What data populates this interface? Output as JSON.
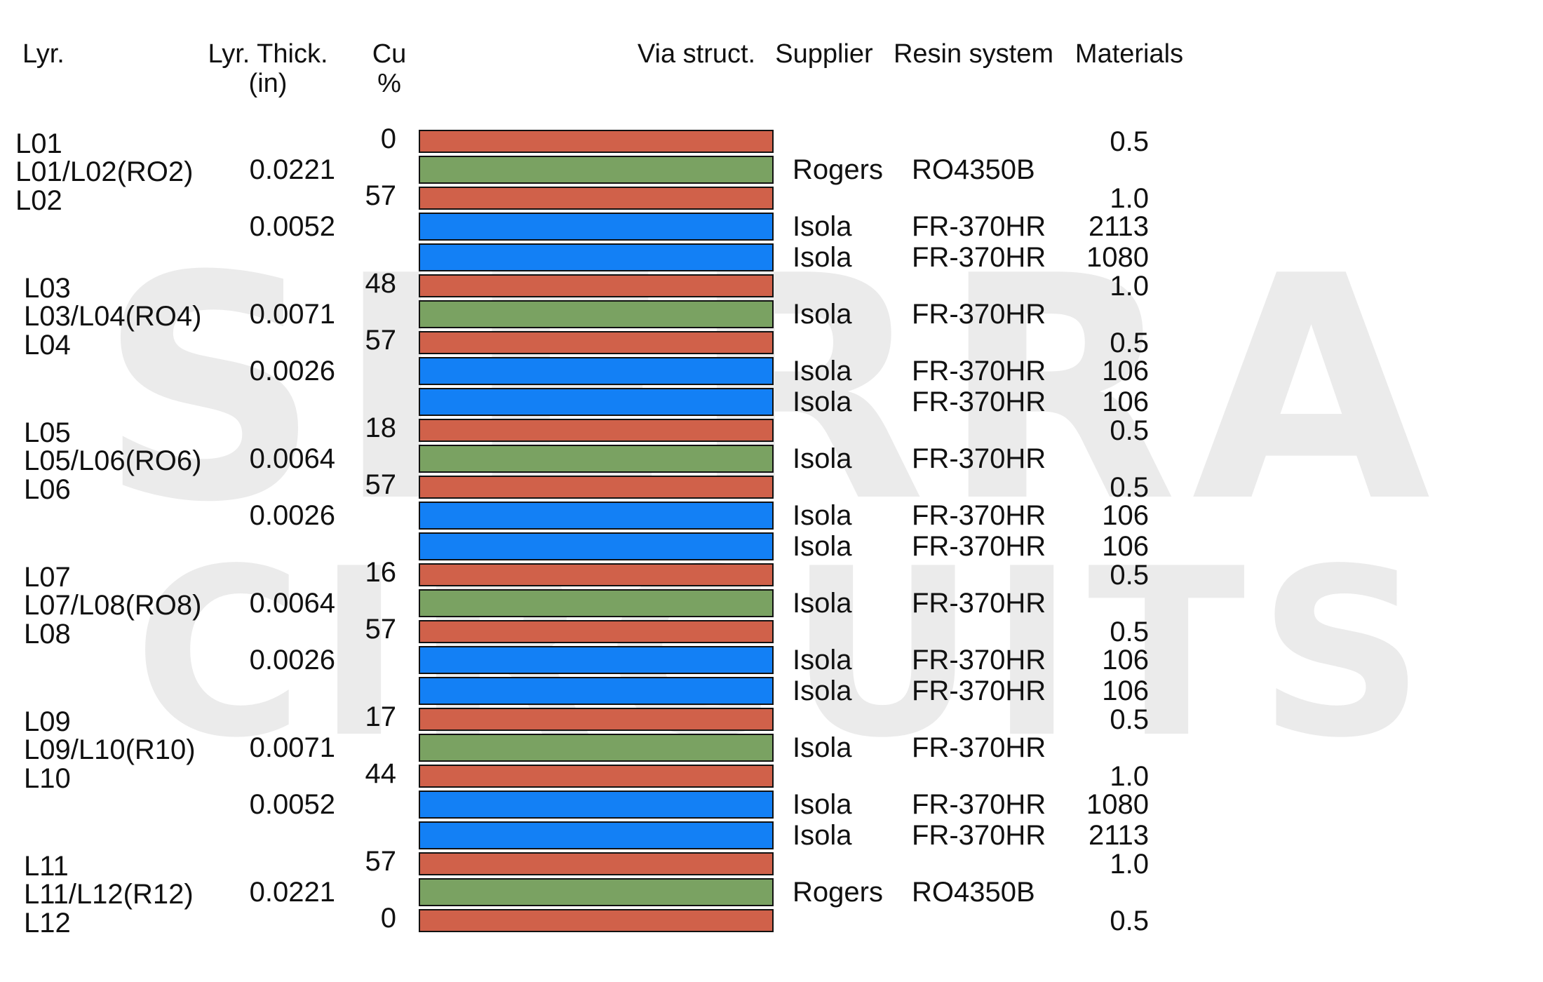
{
  "headers": {
    "lyr": "Lyr.",
    "thick_1": "Lyr. Thick.",
    "thick_2": "(in)",
    "cu_1": "Cu",
    "cu_2": "%",
    "via": "Via struct.",
    "supplier": "Supplier",
    "resin": "Resin system",
    "materials": "Materials"
  },
  "watermark": {
    "line1": "SIERRA",
    "line2": "CIRCUITS"
  },
  "colors": {
    "copper": "#D0614A",
    "core": "#7AA262",
    "prepreg": "#1380F5",
    "outline": "#111111"
  },
  "layers": [
    {
      "type": "copper",
      "label": "L01",
      "cu": "0",
      "material": "0.5"
    },
    {
      "type": "core",
      "label": "L01/L02(RO2)",
      "thickness": "0.0221",
      "supplier": "Rogers",
      "resin": "RO4350B"
    },
    {
      "type": "copper",
      "label": "L02",
      "cu": "57",
      "material": "1.0"
    },
    {
      "type": "prepreg",
      "thickness": "0.0052",
      "supplier": "Isola",
      "resin": "FR-370HR",
      "material": "2113"
    },
    {
      "type": "prepreg",
      "supplier": "Isola",
      "resin": "FR-370HR",
      "material": "1080"
    },
    {
      "type": "copper",
      "label": "L03",
      "cu": "48",
      "material": "1.0"
    },
    {
      "type": "core",
      "label": "L03/L04(RO4)",
      "thickness": "0.0071",
      "supplier": "Isola",
      "resin": "FR-370HR"
    },
    {
      "type": "copper",
      "label": "L04",
      "cu": "57",
      "material": "0.5"
    },
    {
      "type": "prepreg",
      "thickness": "0.0026",
      "supplier": "Isola",
      "resin": "FR-370HR",
      "material": "106"
    },
    {
      "type": "prepreg",
      "supplier": "Isola",
      "resin": "FR-370HR",
      "material": "106"
    },
    {
      "type": "copper",
      "label": "L05",
      "cu": "18",
      "material": "0.5"
    },
    {
      "type": "core",
      "label": "L05/L06(RO6)",
      "thickness": "0.0064",
      "supplier": "Isola",
      "resin": "FR-370HR"
    },
    {
      "type": "copper",
      "label": "L06",
      "cu": "57",
      "material": "0.5"
    },
    {
      "type": "prepreg",
      "thickness": "0.0026",
      "supplier": "Isola",
      "resin": "FR-370HR",
      "material": "106"
    },
    {
      "type": "prepreg",
      "supplier": "Isola",
      "resin": "FR-370HR",
      "material": "106"
    },
    {
      "type": "copper",
      "label": "L07",
      "cu": "16",
      "material": "0.5"
    },
    {
      "type": "core",
      "label": "L07/L08(RO8)",
      "thickness": "0.0064",
      "supplier": "Isola",
      "resin": "FR-370HR"
    },
    {
      "type": "copper",
      "label": "L08",
      "cu": "57",
      "material": "0.5"
    },
    {
      "type": "prepreg",
      "thickness": "0.0026",
      "supplier": "Isola",
      "resin": "FR-370HR",
      "material": "106"
    },
    {
      "type": "prepreg",
      "supplier": "Isola",
      "resin": "FR-370HR",
      "material": "106"
    },
    {
      "type": "copper",
      "label": "L09",
      "cu": "17",
      "material": "0.5"
    },
    {
      "type": "core",
      "label": "L09/L10(R10)",
      "thickness": "0.0071",
      "supplier": "Isola",
      "resin": "FR-370HR"
    },
    {
      "type": "copper",
      "label": "L10",
      "cu": "44",
      "material": "1.0"
    },
    {
      "type": "prepreg",
      "thickness": "0.0052",
      "supplier": "Isola",
      "resin": "FR-370HR",
      "material": "1080"
    },
    {
      "type": "prepreg",
      "supplier": "Isola",
      "resin": "FR-370HR",
      "material": "2113"
    },
    {
      "type": "copper",
      "label": "L11",
      "cu": "57",
      "material": "1.0"
    },
    {
      "type": "core",
      "label": "L11/L12(R12)",
      "thickness": "0.0221",
      "supplier": "Rogers",
      "resin": "RO4350B"
    },
    {
      "type": "copper",
      "label": "L12",
      "cu": "0",
      "material": "0.5"
    }
  ]
}
